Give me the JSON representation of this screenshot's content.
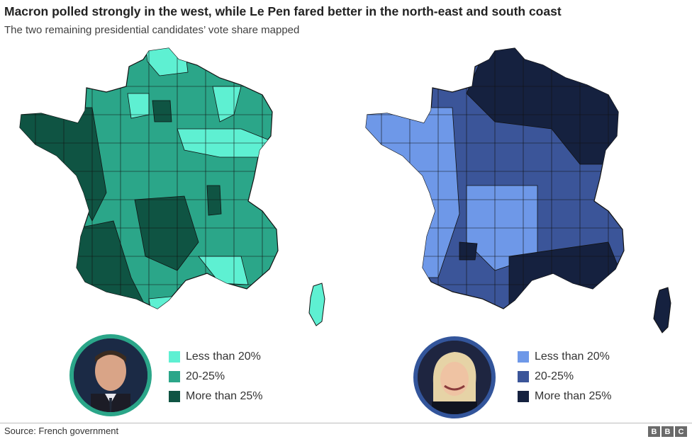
{
  "header": {
    "title": "Macron polled strongly in the west, while Le Pen fared better in the north-east and south coast",
    "subtitle": "The two remaining presidential candidates’ vote share mapped"
  },
  "maps": [
    {
      "legend": [
        {
          "label": "Less than 20%",
          "color": "#5ef0d2"
        },
        {
          "label": "20-25%",
          "color": "#2ba689"
        },
        {
          "label": "More than 25%",
          "color": "#0f5443"
        }
      ],
      "portrait_border": "#2ba689"
    },
    {
      "legend": [
        {
          "label": "Less than 20%",
          "color": "#6e98e8"
        },
        {
          "label": "20-25%",
          "color": "#3b5599"
        },
        {
          "label": "More than 25%",
          "color": "#15213f"
        }
      ],
      "portrait_border": "#33559b"
    }
  ],
  "footer": {
    "source": "Source: French government",
    "logo": [
      "B",
      "B",
      "C"
    ]
  }
}
